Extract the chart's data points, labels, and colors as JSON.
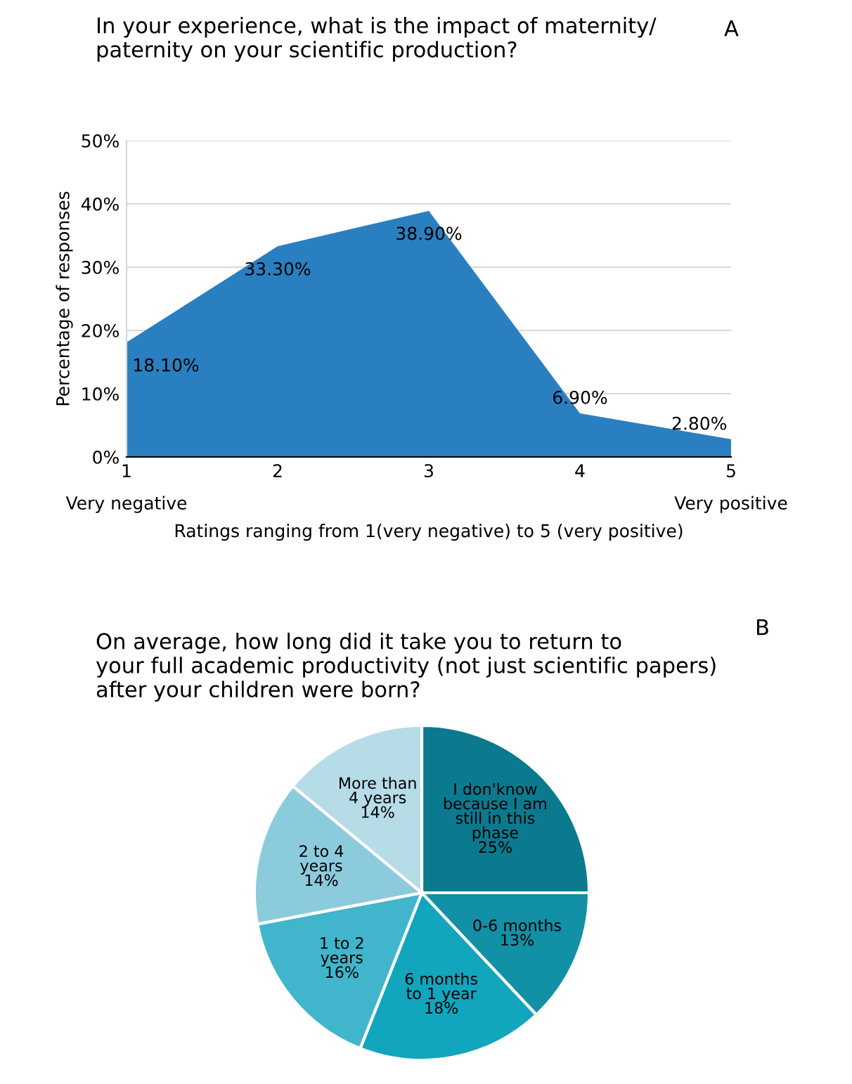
{
  "chart_data": [
    {
      "type": "area",
      "title": "In your experience, what is the impact of maternity/\npaternity on your scientific production?",
      "xlabel": "Ratings ranging from 1(very negative) to 5 (very positive)",
      "ylabel": "Percentage of responses",
      "x": [
        1,
        2,
        3,
        4,
        5
      ],
      "series": [
        {
          "color": "#2a7fc0",
          "values": [
            18.1,
            33.3,
            38.9,
            6.9,
            2.8
          ],
          "value_labels": [
            "18.10%",
            "33.30%",
            "38.90%",
            "6.90%",
            "2.80%"
          ]
        }
      ],
      "xlim": [
        1,
        5
      ],
      "xticks": [
        1,
        2,
        3,
        4,
        5
      ],
      "ylim": [
        0,
        50
      ],
      "yticks": [
        {
          "value": 0,
          "label": "0%"
        },
        {
          "value": 10,
          "label": "10%"
        },
        {
          "value": 20,
          "label": "20%"
        },
        {
          "value": 30,
          "label": "30%"
        },
        {
          "value": 40,
          "label": "40%"
        },
        {
          "value": 50,
          "label": "50%"
        }
      ],
      "grid": "y",
      "annotations": [
        "A",
        "Very negative",
        "Very positive"
      ]
    },
    {
      "type": "pie",
      "title": "On average, how long did it take you to return to\nyour full academic productivity (not just scientific papers)\nafter your children were born?",
      "categories": [
        "I don'know\nbecause I am\nstill in this\nphase",
        "0-6 months",
        "6 months\nto 1 year",
        "1 to 2\nyears",
        "2 to 4\nyears",
        "More than\n4 years"
      ],
      "values": [
        25,
        13,
        18,
        16,
        14,
        14
      ],
      "value_labels": [
        "25%",
        "13%",
        "18%",
        "16%",
        "14%",
        "14%"
      ],
      "colors": [
        "#0b7a8e",
        "#1190a6",
        "#12a5be",
        "#40b5cc",
        "#8ccbdc",
        "#b6dce7"
      ],
      "legend": false,
      "annotations": [
        "B"
      ]
    }
  ]
}
